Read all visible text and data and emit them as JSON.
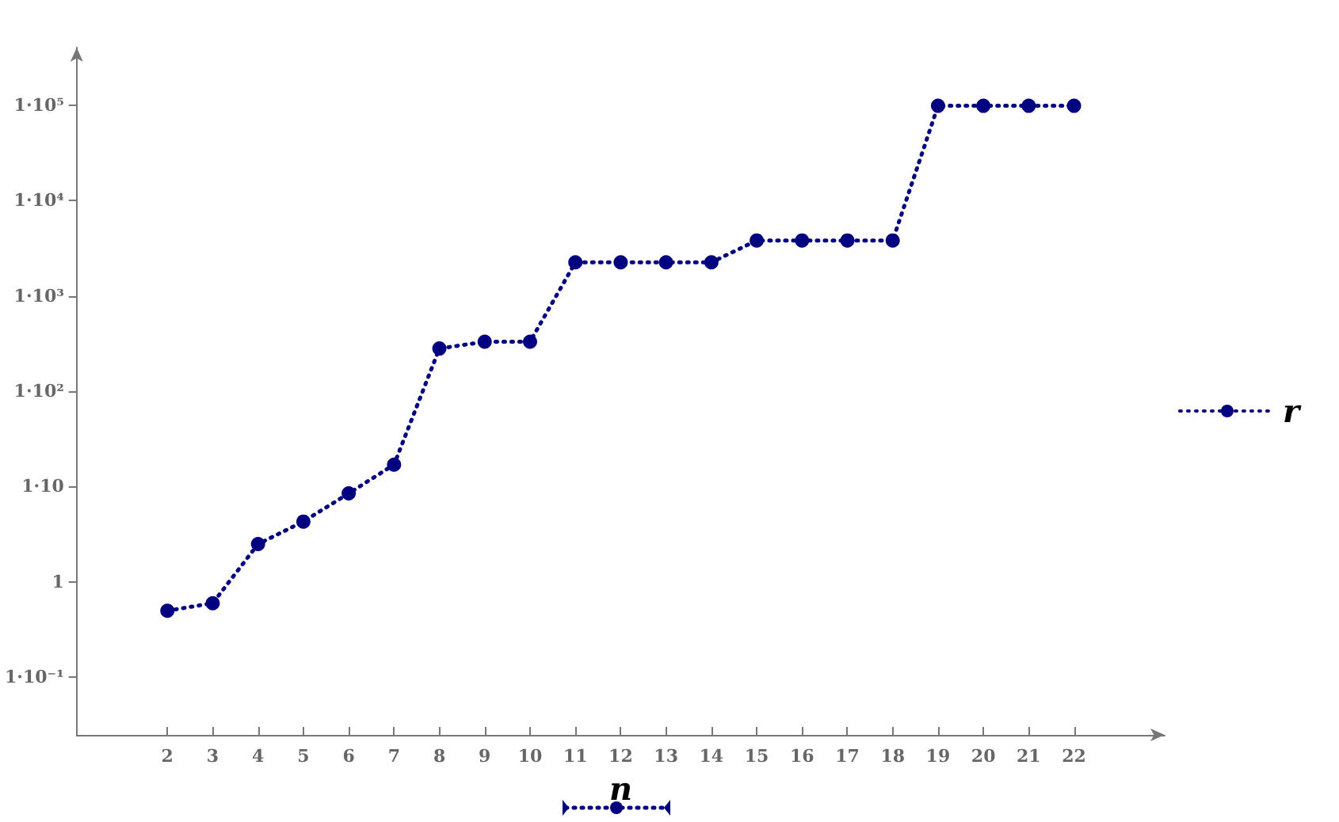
{
  "chart_data": {
    "type": "line",
    "xlabel": "n",
    "x": [
      2,
      3,
      4,
      5,
      6,
      7,
      8,
      9,
      10,
      11,
      12,
      13,
      14,
      15,
      16,
      17,
      18,
      19,
      20,
      21,
      22
    ],
    "series": [
      {
        "name": "r",
        "color": "#000080",
        "values": [
          0.5,
          0.6,
          2.5,
          4.3,
          8.5,
          17,
          280,
          330,
          330,
          2240,
          2240,
          2240,
          2240,
          3800,
          3800,
          3800,
          3800,
          98000,
          98000,
          98000,
          98000
        ]
      }
    ],
    "log": "y",
    "xlim": [
      0,
      24
    ],
    "ylim": [
      0.025,
      400000
    ],
    "xticks": [
      2,
      3,
      4,
      5,
      6,
      7,
      8,
      9,
      10,
      11,
      12,
      13,
      14,
      15,
      16,
      17,
      18,
      19,
      20,
      21,
      22
    ],
    "yticks": [
      {
        "value": 0.1,
        "label": "1·10⁻¹"
      },
      1,
      {
        "value": 10,
        "label": "1·10"
      },
      {
        "value": 100,
        "label": "1·10²"
      },
      {
        "value": 1000,
        "label": "1·10³"
      },
      {
        "value": 10000,
        "label": "1·10⁴"
      },
      {
        "value": 100000,
        "label": "1·10⁵"
      }
    ],
    "grid": false,
    "legend": "right",
    "marker": "circle",
    "line_style": "dotted"
  }
}
